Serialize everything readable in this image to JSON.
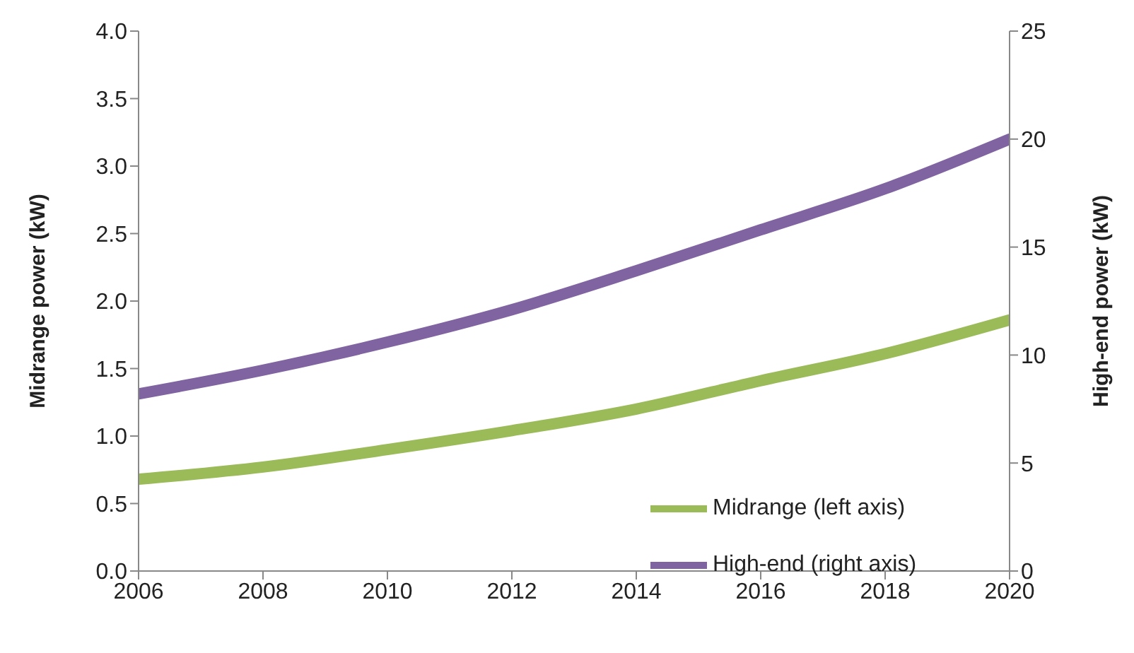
{
  "chart_data": {
    "type": "line",
    "xlabel": null,
    "ylabel": "Midrange power (kW)",
    "y2label": "High-end power (kW)",
    "x": [
      2006,
      2008,
      2010,
      2012,
      2014,
      2016,
      2018,
      2020
    ],
    "series": [
      {
        "name": "Midrange (left axis)",
        "color": "#9bbb59",
        "values": [
          0.68,
          0.77,
          0.9,
          1.04,
          1.2,
          1.41,
          1.61,
          1.86
        ]
      },
      {
        "name": "High-end (right axis)",
        "color": "#8064a2",
        "axis": "y2",
        "values": [
          8.2,
          9.3,
          10.6,
          12.1,
          13.9,
          15.8,
          17.7,
          20.0
        ]
      }
    ],
    "xlim": [
      2006,
      2020
    ],
    "xticks": [
      2006,
      2008,
      2010,
      2012,
      2014,
      2016,
      2018,
      2020
    ],
    "ylim": [
      0,
      4
    ],
    "yticks": [
      {
        "value": 0,
        "label": "0.0"
      },
      {
        "value": 0.5,
        "label": "0.5"
      },
      {
        "value": 1,
        "label": "1.0"
      },
      {
        "value": 1.5,
        "label": "1.5"
      },
      {
        "value": 2,
        "label": "2.0"
      },
      {
        "value": 2.5,
        "label": "2.5"
      },
      {
        "value": 3,
        "label": "3.0"
      },
      {
        "value": 3.5,
        "label": "3.5"
      },
      {
        "value": 4,
        "label": "4.0"
      }
    ],
    "y2lim": [
      0,
      25
    ],
    "y2ticks": [
      0,
      5,
      10,
      15,
      20,
      25
    ],
    "grid": false,
    "legend": "bottom right",
    "marker": "none",
    "line_style": "solid"
  }
}
